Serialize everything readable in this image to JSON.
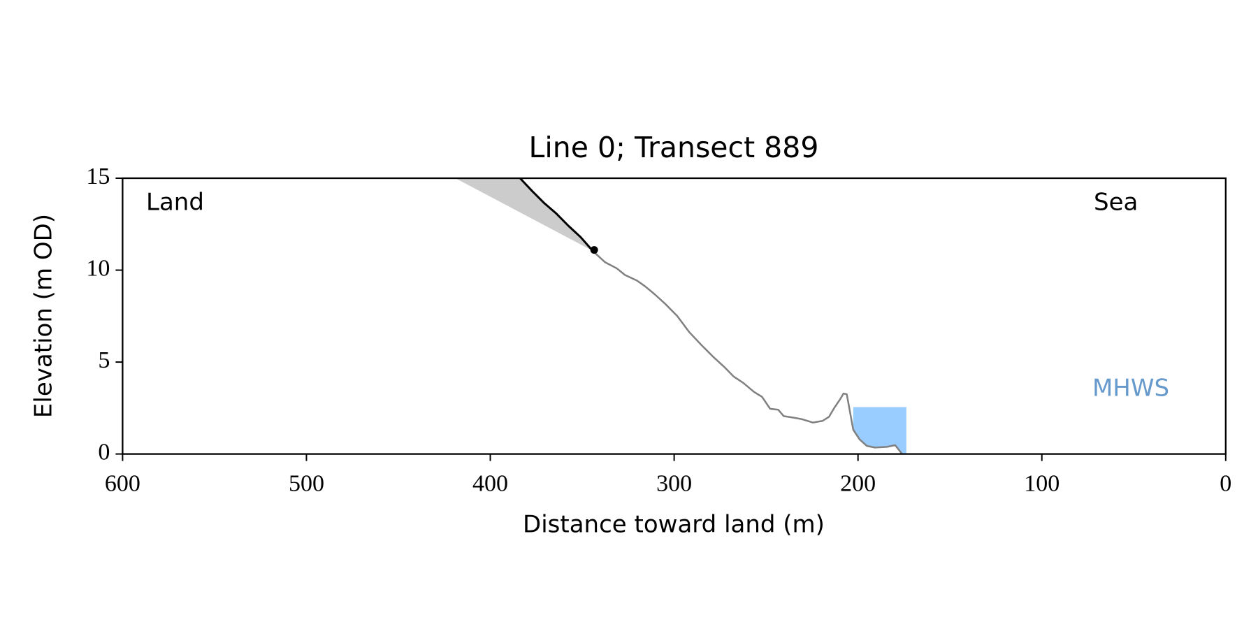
{
  "chart_data": {
    "type": "line",
    "title": "Line 0; Transect 889",
    "xlabel": "Distance toward land (m)",
    "ylabel": "Elevation (m OD)",
    "xlim": [
      600,
      0
    ],
    "ylim": [
      0,
      15
    ],
    "xticks": [
      600,
      500,
      400,
      300,
      200,
      100,
      0
    ],
    "yticks": [
      0,
      5,
      10,
      15
    ],
    "annotations": [
      {
        "text": "Land"
      },
      {
        "text": "Sea"
      }
    ],
    "series": [
      {
        "color": "#808080",
        "x": [
          344.3,
          337.7,
          331.1,
          326.8,
          320.2,
          315.8,
          310.5,
          304.8,
          298.3,
          291.7,
          285.1,
          278.5,
          272.8,
          267.6,
          262.3,
          256.6,
          252.2,
          247.8,
          243.4,
          240.4,
          234.7,
          230.3,
          224.6,
          219.3,
          215.8,
          212.7,
          209.7,
          207.9,
          206.1,
          202.6,
          199.1,
          195.2,
          190.8,
          184.2,
          179.8,
          176.3
        ],
        "values": [
          11.05,
          10.44,
          10.09,
          9.74,
          9.43,
          9.12,
          8.68,
          8.16,
          7.5,
          6.62,
          5.92,
          5.26,
          4.74,
          4.21,
          3.86,
          3.38,
          3.11,
          2.46,
          2.41,
          2.06,
          1.97,
          1.89,
          1.71,
          1.8,
          2.02,
          2.54,
          2.98,
          3.29,
          3.25,
          1.32,
          0.79,
          0.44,
          0.35,
          0.39,
          0.48,
          0.04
        ]
      },
      {
        "color": "#000000",
        "x": [
          383.8,
          377.2,
          370.6,
          364.0,
          357.5,
          350.9,
          344.3
        ],
        "values": [
          15,
          14.3,
          13.64,
          13.07,
          12.41,
          11.8,
          11.05
        ]
      }
    ],
    "shade": {
      "color": "#cccccc",
      "x": [
        419,
        383.8,
        377.2,
        370.6,
        364.0,
        357.5,
        350.9,
        344.3
      ],
      "values": [
        15,
        15,
        14.3,
        13.64,
        13.07,
        12.41,
        11.8,
        11.05
      ]
    },
    "point": {
      "x": 343.5,
      "y": 11.1,
      "color": "#000000"
    },
    "mhws": {
      "label": "MHWS",
      "level": 2.55,
      "x": [
        202.6,
        173.7
      ],
      "color": "#99ccff",
      "label_color": "#6699cc"
    }
  }
}
